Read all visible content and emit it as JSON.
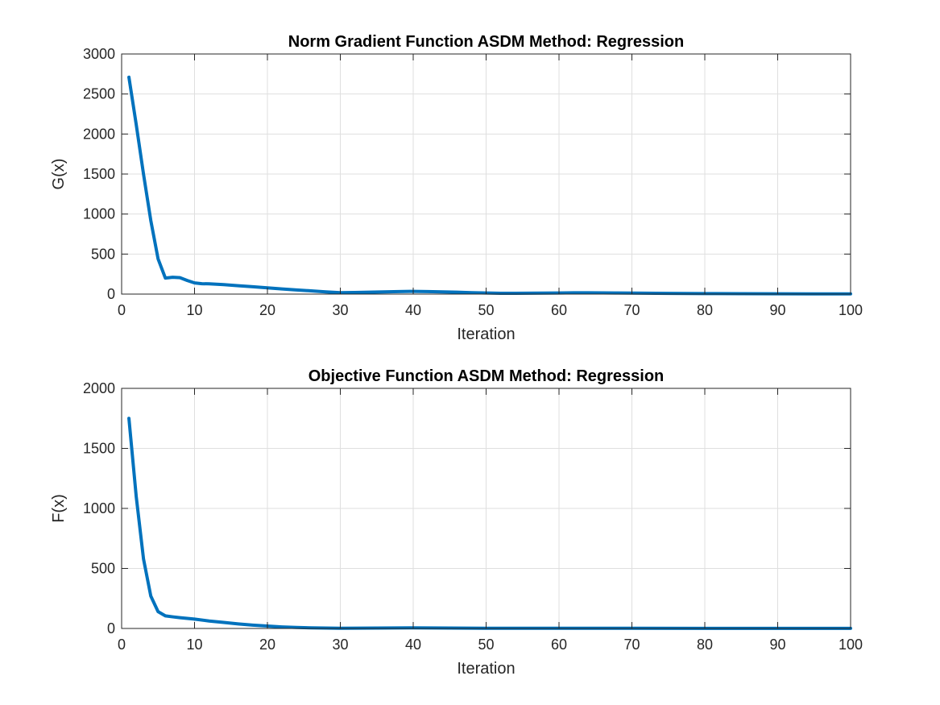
{
  "chart_data": [
    {
      "type": "line",
      "title": "Norm Gradient Function ASDM Method: Regression",
      "xlabel": "Iteration",
      "ylabel": "G(x)",
      "xlim": [
        0,
        100
      ],
      "ylim": [
        0,
        3000
      ],
      "xticks": [
        0,
        10,
        20,
        30,
        40,
        50,
        60,
        70,
        80,
        90,
        100
      ],
      "yticks": [
        0,
        500,
        1000,
        1500,
        2000,
        2500,
        3000
      ],
      "grid": true,
      "series": [
        {
          "color": "#0072BD",
          "x": [
            1,
            2,
            3,
            4,
            5,
            6,
            7,
            8,
            9,
            10,
            11,
            12,
            14,
            16,
            18,
            20,
            22,
            24,
            26,
            28,
            30,
            32,
            34,
            36,
            38,
            40,
            42,
            44,
            46,
            48,
            50,
            52,
            54,
            56,
            58,
            60,
            62,
            64,
            66,
            68,
            70,
            75,
            80,
            85,
            90,
            95,
            100
          ],
          "y": [
            2710,
            2120,
            1500,
            920,
            440,
            200,
            210,
            205,
            170,
            140,
            130,
            128,
            118,
            105,
            92,
            78,
            64,
            52,
            40,
            28,
            18,
            20,
            24,
            28,
            32,
            34,
            32,
            28,
            24,
            18,
            14,
            10,
            10,
            11,
            12,
            14,
            16,
            16,
            15,
            14,
            12,
            9,
            6,
            5,
            4,
            3,
            3
          ]
        }
      ]
    },
    {
      "type": "line",
      "title": "Objective Function ASDM Method: Regression",
      "xlabel": "Iteration",
      "ylabel": "F(x)",
      "xlim": [
        0,
        100
      ],
      "ylim": [
        0,
        2000
      ],
      "xticks": [
        0,
        10,
        20,
        30,
        40,
        50,
        60,
        70,
        80,
        90,
        100
      ],
      "yticks": [
        0,
        500,
        1000,
        1500,
        2000
      ],
      "grid": true,
      "series": [
        {
          "color": "#0072BD",
          "x": [
            1,
            2,
            3,
            4,
            5,
            6,
            7,
            8,
            9,
            10,
            12,
            14,
            16,
            18,
            20,
            22,
            24,
            26,
            28,
            30,
            35,
            40,
            45,
            50,
            60,
            70,
            80,
            90,
            100
          ],
          "y": [
            1750,
            1100,
            580,
            270,
            140,
            105,
            97,
            90,
            84,
            78,
            62,
            50,
            38,
            28,
            20,
            13,
            8,
            5,
            3,
            2,
            3,
            5,
            3,
            2,
            2,
            1.5,
            1,
            1,
            1
          ]
        }
      ]
    }
  ]
}
